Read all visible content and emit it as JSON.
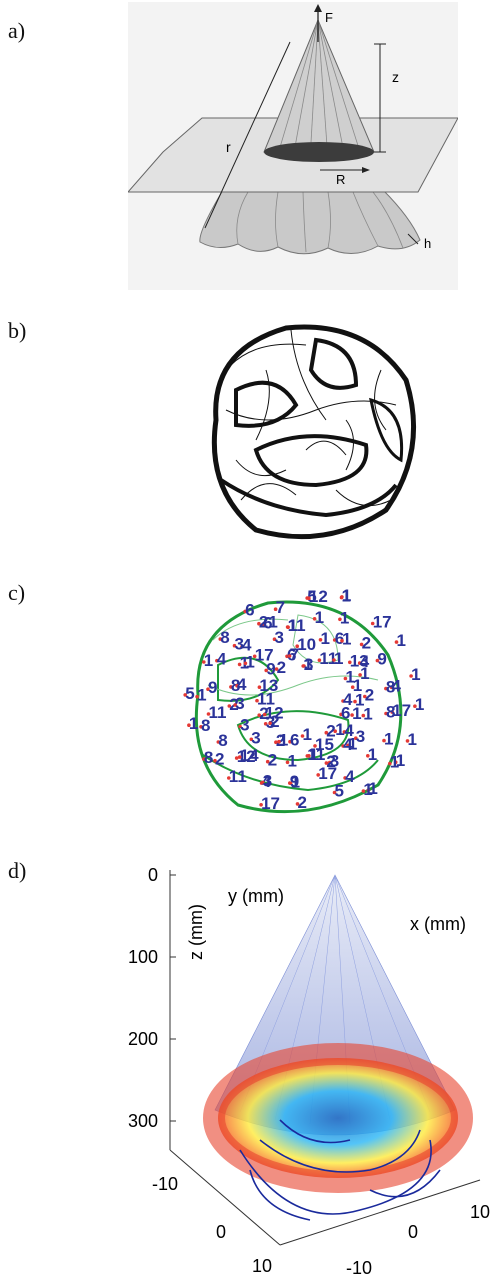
{
  "panels": {
    "a": {
      "label": "a)",
      "annotations": {
        "force": "F",
        "height": "z",
        "distance": "r",
        "radius": "R",
        "thickness": "h"
      }
    },
    "b": {
      "label": "b)"
    },
    "c": {
      "label": "c)",
      "node_labels": [
        "4",
        "1",
        "1",
        "2",
        "2",
        "2",
        "4",
        "5",
        "6",
        "6",
        "4",
        "1",
        "6",
        "3",
        "4",
        "8",
        "3",
        "8",
        "6",
        "1",
        "1",
        "13",
        "17",
        "1",
        "1",
        "1",
        "12",
        "1",
        "2",
        "1",
        "1",
        "17",
        "11",
        "1",
        "1",
        "5",
        "2",
        "1",
        "8",
        "1",
        "11",
        "17",
        "1",
        "1",
        "1",
        "2",
        "1",
        "2",
        "15",
        "2",
        "11",
        "8",
        "13",
        "3",
        "1",
        "1",
        "1",
        "1",
        "4",
        "17",
        "1",
        "3",
        "9",
        "6",
        "9",
        "10",
        "2",
        "1",
        "1",
        "3",
        "17",
        "11",
        "6",
        "3",
        "4",
        "7",
        "2",
        "1",
        "9",
        "1",
        "1",
        "4",
        "9",
        "8",
        "1",
        "3",
        "3",
        "12",
        "7",
        "1",
        "8",
        "1",
        "1",
        "2",
        "3",
        "1",
        "2",
        "4",
        "21",
        "1",
        "3",
        "4",
        "8",
        "1",
        "4",
        "11",
        "14",
        "5",
        "12",
        "1",
        "11"
      ]
    },
    "d": {
      "label": "d)",
      "axes": {
        "z_label": "z (mm)",
        "y_label": "y (mm)",
        "x_label": "x (mm)",
        "z_ticks": [
          "0",
          "100",
          "200",
          "300"
        ],
        "y_ticks": [
          "-10",
          "0",
          "10"
        ],
        "x_ticks": [
          "10",
          "0",
          "-10"
        ]
      },
      "colors": {
        "cone": "#5c73c9",
        "ring": "#e8452f",
        "curves": "#1a2a9c"
      }
    }
  }
}
